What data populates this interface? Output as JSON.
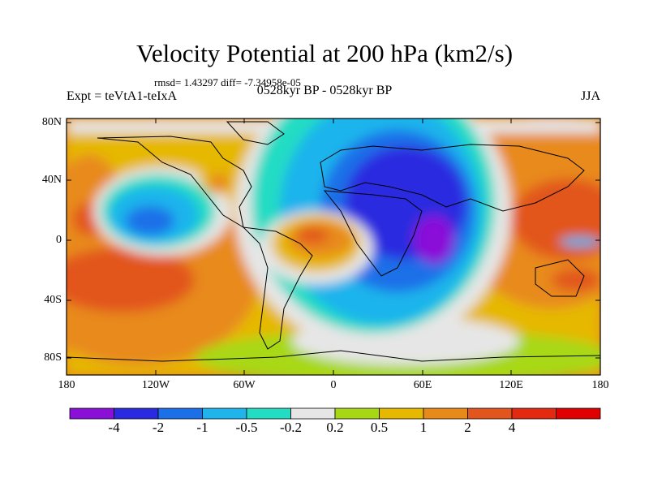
{
  "title": "Velocity Potential at 200 hPa (km2/s)",
  "stats": "rmsd= 1.43297 diff= -7.34958e-05",
  "left_label": "Expt = teVtA1-teIxA",
  "center_label": "0528kyr BP - 0528kyr BP",
  "right_label": "JJA",
  "lat_labels": [
    "80N",
    "40N",
    "0",
    "40S",
    "80S"
  ],
  "lon_labels": [
    "180",
    "120W",
    "60W",
    "0",
    "60E",
    "120E",
    "180"
  ],
  "colorbar": {
    "colors": [
      "#8a10d8",
      "#2a2ae0",
      "#1b6fe8",
      "#1fb4ec",
      "#22dcc4",
      "#e6e6e6",
      "#a8d814",
      "#e6b800",
      "#e88a1a",
      "#e2561e",
      "#e32a10",
      "#e00000"
    ],
    "labels": [
      "-4",
      "-2",
      "-1",
      "-0.5",
      "-0.2",
      "0.2",
      "0.5",
      "1",
      "2",
      "4"
    ]
  }
}
